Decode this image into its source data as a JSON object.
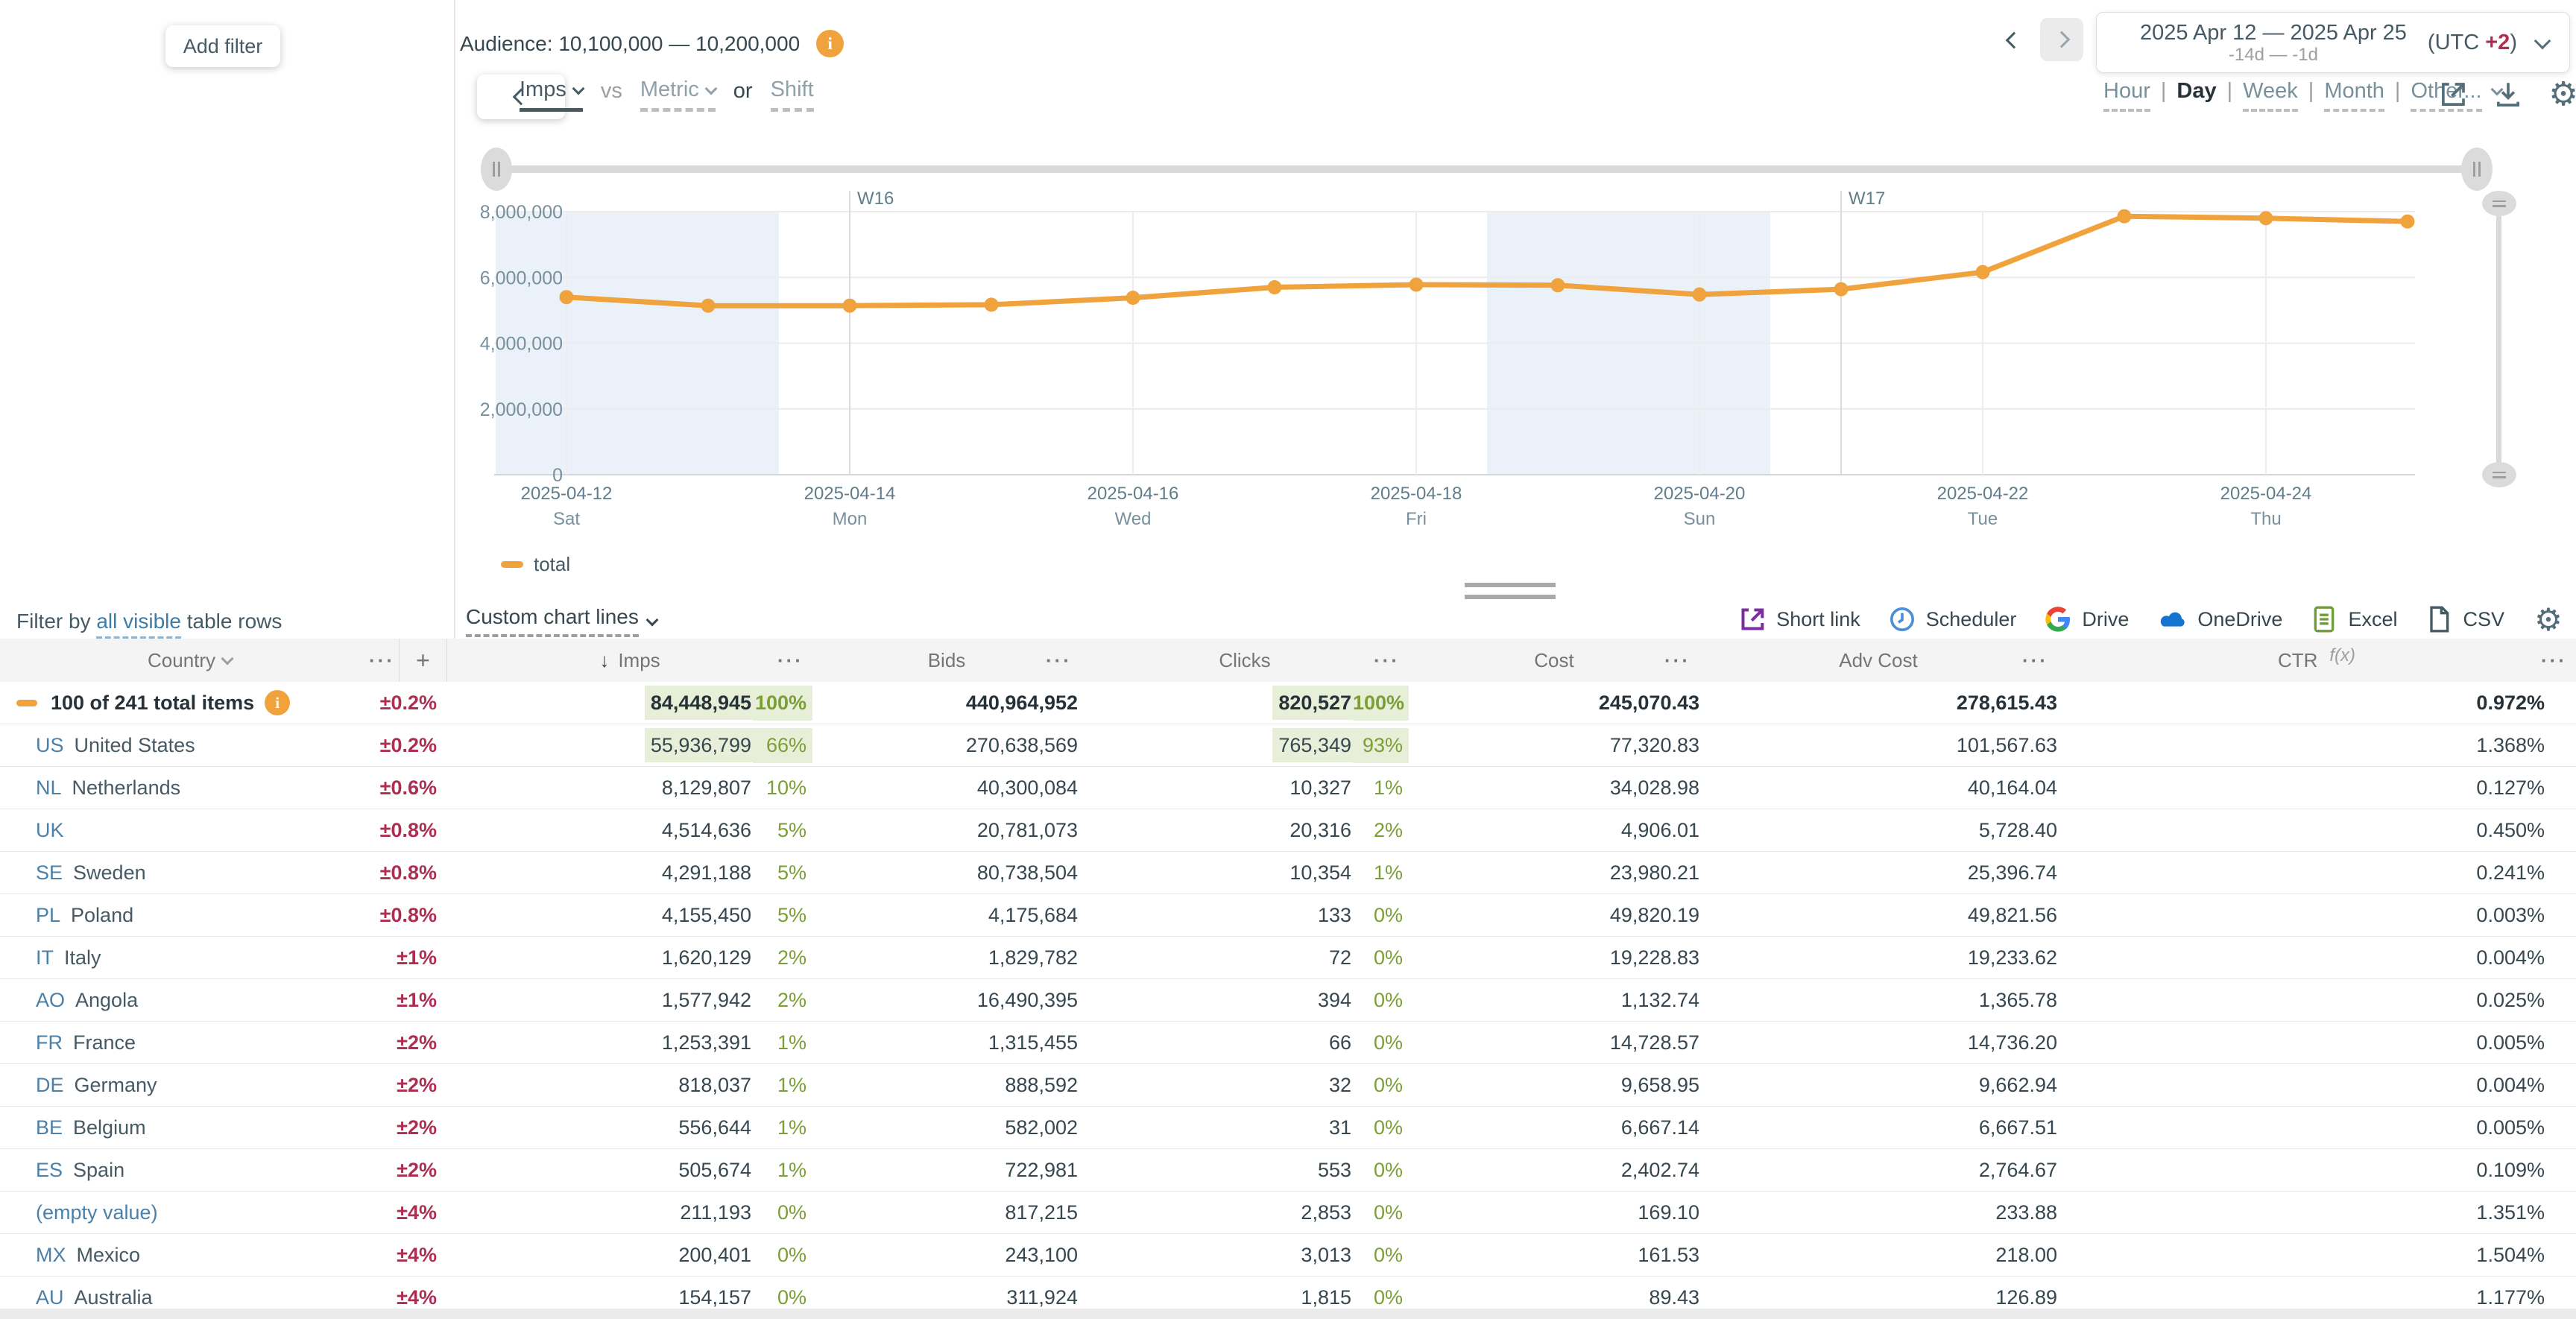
{
  "colors": {
    "accent": "#F0A33C",
    "negative": "#AE2E52",
    "positive": "#7B9E35",
    "positive_bg": "#E7EFD9",
    "link": "#3E7CA9",
    "country_code": "#4B80A8"
  },
  "left_panel": {
    "add_filter_label": "Add filter",
    "filter_by_prefix": "Filter by",
    "filter_by_link": "all visible",
    "filter_by_suffix": "table rows"
  },
  "topbar": {
    "audience_label": "Audience: 10,100,000 — 10,200,000",
    "date_range": "2025 Apr 12 — 2025 Apr 25",
    "date_relative": "-14d — -1d",
    "utc_label": "(UTC ",
    "utc_offset": "+2",
    "utc_close": ")"
  },
  "controls": {
    "primary_metric": "Imps",
    "vs_label": "vs",
    "secondary_metric": "Metric",
    "or_label": "or",
    "shift_label": "Shift",
    "granularity": [
      "Hour",
      "Day",
      "Week",
      "Month",
      "Other..."
    ],
    "granularity_active": "Day",
    "separator": "|"
  },
  "chart_footer": {
    "custom_chart_lines": "Custom chart lines"
  },
  "toolbar": {
    "items": [
      {
        "label": "Short link",
        "icon": "short-link-icon"
      },
      {
        "label": "Scheduler",
        "icon": "scheduler-icon"
      },
      {
        "label": "Drive",
        "icon": "google-drive-icon"
      },
      {
        "label": "OneDrive",
        "icon": "onedrive-icon"
      },
      {
        "label": "Excel",
        "icon": "excel-icon"
      },
      {
        "label": "CSV",
        "icon": "csv-icon"
      }
    ]
  },
  "chart_data": {
    "type": "line",
    "title": "",
    "xlabel": "",
    "ylabel": "",
    "ylim": [
      0,
      8000000
    ],
    "grid": true,
    "legend_position": "bottom-left",
    "series": [
      {
        "name": "total",
        "color": "#F0A33C",
        "x": [
          "2025-04-12",
          "2025-04-13",
          "2025-04-14",
          "2025-04-15",
          "2025-04-16",
          "2025-04-17",
          "2025-04-18",
          "2025-04-19",
          "2025-04-20",
          "2025-04-21",
          "2025-04-22",
          "2025-04-23",
          "2025-04-24",
          "2025-04-25"
        ],
        "values": [
          5400000,
          5140000,
          5140000,
          5170000,
          5380000,
          5700000,
          5780000,
          5760000,
          5480000,
          5640000,
          6160000,
          7860000,
          7800000,
          7700000
        ]
      }
    ],
    "yticks": [
      {
        "v": 0,
        "label": "0"
      },
      {
        "v": 2000000,
        "label": "2,000,000"
      },
      {
        "v": 4000000,
        "label": "4,000,000"
      },
      {
        "v": 6000000,
        "label": "6,000,000"
      },
      {
        "v": 8000000,
        "label": "8,000,000"
      }
    ],
    "xticks": [
      {
        "date": "2025-04-12",
        "day": "Sat"
      },
      {
        "date": "2025-04-14",
        "day": "Mon"
      },
      {
        "date": "2025-04-16",
        "day": "Wed"
      },
      {
        "date": "2025-04-18",
        "day": "Fri"
      },
      {
        "date": "2025-04-20",
        "day": "Sun"
      },
      {
        "date": "2025-04-22",
        "day": "Tue"
      },
      {
        "date": "2025-04-24",
        "day": "Thu"
      }
    ],
    "week_markers": [
      {
        "label": "W16",
        "date": "2025-04-14"
      },
      {
        "label": "W17",
        "date": "2025-04-21"
      }
    ],
    "weekend_bands": [
      {
        "from": "2025-04-12",
        "to": "2025-04-13"
      },
      {
        "from": "2025-04-19",
        "to": "2025-04-20"
      }
    ],
    "legend": [
      {
        "label": "total",
        "color": "#F0A33C"
      }
    ]
  },
  "table": {
    "columns": {
      "country": "Country",
      "imps": "Imps",
      "bids": "Bids",
      "clicks": "Clicks",
      "cost": "Cost",
      "adv_cost": "Adv Cost",
      "ctr": "CTR"
    },
    "ctr_fn": "f(x)",
    "sort_glyph": "↓",
    "more_glyph": "···",
    "add_glyph": "+",
    "total_row": {
      "label": "100 of 241 total items",
      "pm": "±0.2%",
      "imps": "84,448,945",
      "imps_pct": "100%",
      "imps_hl": true,
      "bids": "440,964,952",
      "clicks": "820,527",
      "clicks_pct": "100%",
      "clicks_hl": true,
      "cost": "245,070.43",
      "adv_cost": "278,615.43",
      "ctr": "0.972%"
    },
    "rows": [
      {
        "code": "US",
        "name": "United States",
        "pm": "±0.2%",
        "imps": "55,936,799",
        "imps_pct": "66%",
        "imps_hl": true,
        "bids": "270,638,569",
        "clicks": "765,349",
        "clicks_pct": "93%",
        "clicks_hl": true,
        "cost": "77,320.83",
        "adv_cost": "101,567.63",
        "ctr": "1.368%"
      },
      {
        "code": "NL",
        "name": "Netherlands",
        "pm": "±0.6%",
        "imps": "8,129,807",
        "imps_pct": "10%",
        "bids": "40,300,084",
        "clicks": "10,327",
        "clicks_pct": "1%",
        "cost": "34,028.98",
        "adv_cost": "40,164.04",
        "ctr": "0.127%"
      },
      {
        "code": "UK",
        "name": "",
        "pm": "±0.8%",
        "imps": "4,514,636",
        "imps_pct": "5%",
        "bids": "20,781,073",
        "clicks": "20,316",
        "clicks_pct": "2%",
        "cost": "4,906.01",
        "adv_cost": "5,728.40",
        "ctr": "0.450%"
      },
      {
        "code": "SE",
        "name": "Sweden",
        "pm": "±0.8%",
        "imps": "4,291,188",
        "imps_pct": "5%",
        "bids": "80,738,504",
        "clicks": "10,354",
        "clicks_pct": "1%",
        "cost": "23,980.21",
        "adv_cost": "25,396.74",
        "ctr": "0.241%"
      },
      {
        "code": "PL",
        "name": "Poland",
        "pm": "±0.8%",
        "imps": "4,155,450",
        "imps_pct": "5%",
        "bids": "4,175,684",
        "clicks": "133",
        "clicks_pct": "0%",
        "cost": "49,820.19",
        "adv_cost": "49,821.56",
        "ctr": "0.003%"
      },
      {
        "code": "IT",
        "name": "Italy",
        "pm": "±1%",
        "imps": "1,620,129",
        "imps_pct": "2%",
        "bids": "1,829,782",
        "clicks": "72",
        "clicks_pct": "0%",
        "cost": "19,228.83",
        "adv_cost": "19,233.62",
        "ctr": "0.004%"
      },
      {
        "code": "AO",
        "name": "Angola",
        "pm": "±1%",
        "imps": "1,577,942",
        "imps_pct": "2%",
        "bids": "16,490,395",
        "clicks": "394",
        "clicks_pct": "0%",
        "cost": "1,132.74",
        "adv_cost": "1,365.78",
        "ctr": "0.025%"
      },
      {
        "code": "FR",
        "name": "France",
        "pm": "±2%",
        "imps": "1,253,391",
        "imps_pct": "1%",
        "bids": "1,315,455",
        "clicks": "66",
        "clicks_pct": "0%",
        "cost": "14,728.57",
        "adv_cost": "14,736.20",
        "ctr": "0.005%"
      },
      {
        "code": "DE",
        "name": "Germany",
        "pm": "±2%",
        "imps": "818,037",
        "imps_pct": "1%",
        "bids": "888,592",
        "clicks": "32",
        "clicks_pct": "0%",
        "cost": "9,658.95",
        "adv_cost": "9,662.94",
        "ctr": "0.004%"
      },
      {
        "code": "BE",
        "name": "Belgium",
        "pm": "±2%",
        "imps": "556,644",
        "imps_pct": "1%",
        "bids": "582,002",
        "clicks": "31",
        "clicks_pct": "0%",
        "cost": "6,667.14",
        "adv_cost": "6,667.51",
        "ctr": "0.005%"
      },
      {
        "code": "ES",
        "name": "Spain",
        "pm": "±2%",
        "imps": "505,674",
        "imps_pct": "1%",
        "bids": "722,981",
        "clicks": "553",
        "clicks_pct": "0%",
        "cost": "2,402.74",
        "adv_cost": "2,764.67",
        "ctr": "0.109%"
      },
      {
        "code": "",
        "name": "(empty value)",
        "empty": true,
        "pm": "±4%",
        "imps": "211,193",
        "imps_pct": "0%",
        "bids": "817,215",
        "clicks": "2,853",
        "clicks_pct": "0%",
        "cost": "169.10",
        "adv_cost": "233.88",
        "ctr": "1.351%"
      },
      {
        "code": "MX",
        "name": "Mexico",
        "pm": "±4%",
        "imps": "200,401",
        "imps_pct": "0%",
        "bids": "243,100",
        "clicks": "3,013",
        "clicks_pct": "0%",
        "cost": "161.53",
        "adv_cost": "218.00",
        "ctr": "1.504%"
      },
      {
        "code": "AU",
        "name": "Australia",
        "pm": "±4%",
        "imps": "154,157",
        "imps_pct": "0%",
        "bids": "311,924",
        "clicks": "1,815",
        "clicks_pct": "0%",
        "cost": "89.43",
        "adv_cost": "126.89",
        "ctr": "1.177%"
      }
    ]
  }
}
